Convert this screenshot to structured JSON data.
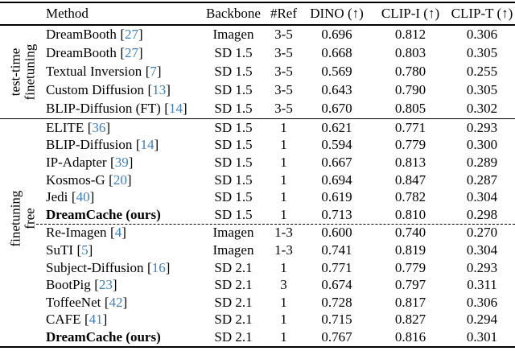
{
  "colors": {
    "background": "#ffffff",
    "text": "#000000",
    "citation_blue": "#3d7ebf",
    "rule_black": "#000000"
  },
  "punctuation": {
    "bracket_open": "[",
    "bracket_close": "]"
  },
  "table": {
    "columns": [
      "Method",
      "Backbone",
      "#Ref",
      "DINO (↑)",
      "CLIP-I (↑)",
      "CLIP-T (↑)"
    ],
    "sections": [
      {
        "side_label_lines": [
          "test-time",
          "finetuning"
        ],
        "groups": [
          {
            "rows": [
              {
                "method": "DreamBooth",
                "citation": "27",
                "bold": false,
                "backbone": "Imagen",
                "num_ref": "3-5",
                "dino": "0.696",
                "clip_i": "0.812",
                "clip_t": "0.306"
              },
              {
                "method": "DreamBooth",
                "citation": "27",
                "bold": false,
                "backbone": "SD 1.5",
                "num_ref": "3-5",
                "dino": "0.668",
                "clip_i": "0.803",
                "clip_t": "0.305"
              },
              {
                "method": "Textual Inversion",
                "citation": "7",
                "bold": false,
                "backbone": "SD 1.5",
                "num_ref": "3-5",
                "dino": "0.569",
                "clip_i": "0.780",
                "clip_t": "0.255"
              },
              {
                "method": "Custom Diffusion",
                "citation": "13",
                "bold": false,
                "backbone": "SD 1.5",
                "num_ref": "3-5",
                "dino": "0.643",
                "clip_i": "0.790",
                "clip_t": "0.305"
              },
              {
                "method": "BLIP-Diffusion (FT)",
                "citation": "14",
                "bold": false,
                "backbone": "SD 1.5",
                "num_ref": "3-5",
                "dino": "0.670",
                "clip_i": "0.805",
                "clip_t": "0.302"
              }
            ]
          }
        ]
      },
      {
        "side_label_lines": [
          "finetuning",
          "free"
        ],
        "groups": [
          {
            "rows": [
              {
                "method": "ELITE",
                "citation": "36",
                "bold": false,
                "backbone": "SD 1.5",
                "num_ref": "1",
                "dino": "0.621",
                "clip_i": "0.771",
                "clip_t": "0.293"
              },
              {
                "method": "BLIP-Diffusion",
                "citation": "14",
                "bold": false,
                "backbone": "SD 1.5",
                "num_ref": "1",
                "dino": "0.594",
                "clip_i": "0.779",
                "clip_t": "0.300"
              },
              {
                "method": "IP-Adapter",
                "citation": "39",
                "bold": false,
                "backbone": "SD 1.5",
                "num_ref": "1",
                "dino": "0.667",
                "clip_i": "0.813",
                "clip_t": "0.289"
              },
              {
                "method": "Kosmos-G",
                "citation": "20",
                "bold": false,
                "backbone": "SD 1.5",
                "num_ref": "1",
                "dino": "0.694",
                "clip_i": "0.847",
                "clip_t": "0.287"
              },
              {
                "method": "Jedi",
                "citation": "40",
                "bold": false,
                "backbone": "SD 1.5",
                "num_ref": "1",
                "dino": "0.619",
                "clip_i": "0.782",
                "clip_t": "0.304"
              },
              {
                "method": "DreamCache (ours)",
                "citation": null,
                "bold": true,
                "backbone": "SD 1.5",
                "num_ref": "1",
                "dino": "0.713",
                "clip_i": "0.810",
                "clip_t": "0.298"
              }
            ]
          },
          {
            "rows": [
              {
                "method": "Re-Imagen",
                "citation": "4",
                "bold": false,
                "backbone": "Imagen",
                "num_ref": "1-3",
                "dino": "0.600",
                "clip_i": "0.740",
                "clip_t": "0.270"
              },
              {
                "method": "SuTI",
                "citation": "5",
                "bold": false,
                "backbone": "Imagen",
                "num_ref": "1-3",
                "dino": "0.741",
                "clip_i": "0.819",
                "clip_t": "0.304"
              },
              {
                "method": "Subject-Diffusion",
                "citation": "16",
                "bold": false,
                "backbone": "SD 2.1",
                "num_ref": "1",
                "dino": "0.771",
                "clip_i": "0.779",
                "clip_t": "0.293"
              },
              {
                "method": "BootPig",
                "citation": "23",
                "bold": false,
                "backbone": "SD 2.1",
                "num_ref": "3",
                "dino": "0.674",
                "clip_i": "0.797",
                "clip_t": "0.311"
              },
              {
                "method": "ToffeeNet",
                "citation": "42",
                "bold": false,
                "backbone": "SD 2.1",
                "num_ref": "1",
                "dino": "0.728",
                "clip_i": "0.817",
                "clip_t": "0.306"
              },
              {
                "method": "CAFE",
                "citation": "41",
                "bold": false,
                "backbone": "SD 2.1",
                "num_ref": "1",
                "dino": "0.715",
                "clip_i": "0.827",
                "clip_t": "0.294"
              },
              {
                "method": "DreamCache (ours)",
                "citation": null,
                "bold": true,
                "backbone": "SD 2.1",
                "num_ref": "1",
                "dino": "0.767",
                "clip_i": "0.816",
                "clip_t": "0.301"
              }
            ]
          }
        ]
      }
    ]
  }
}
